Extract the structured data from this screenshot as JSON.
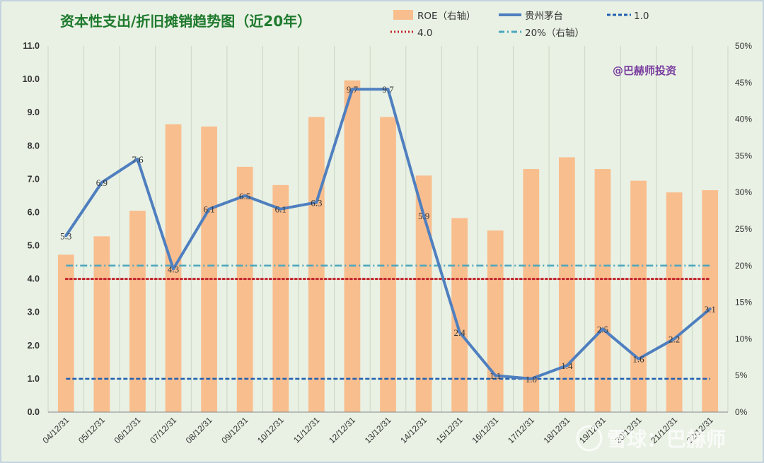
{
  "chart_data": {
    "type": "bar",
    "title": "资本性支出/折旧摊销趋势图（近20年）",
    "categories": [
      "04/12/31",
      "05/12/31",
      "06/12/31",
      "07/12/31",
      "08/12/31",
      "09/12/31",
      "10/12/31",
      "11/12/31",
      "12/12/31",
      "13/12/31",
      "14/12/31",
      "15/12/31",
      "16/12/31",
      "17/12/31",
      "18/12/31",
      "19/12/31",
      "20/12/31",
      "21/12/31",
      "22/12/31"
    ],
    "series": [
      {
        "name": "ROE（右轴）",
        "type": "bar",
        "axis": "right",
        "color": "#f9be8e",
        "values": [
          21.5,
          24.0,
          27.5,
          39.3,
          39.0,
          33.5,
          31.0,
          40.3,
          45.3,
          40.3,
          32.3,
          26.5,
          24.8,
          33.2,
          34.8,
          33.2,
          31.6,
          30.0,
          30.3
        ]
      },
      {
        "name": "贵州茅台",
        "type": "line",
        "axis": "left",
        "color": "#4f7fbf",
        "values": [
          5.3,
          6.9,
          7.6,
          4.3,
          6.1,
          6.5,
          6.1,
          6.3,
          9.7,
          9.7,
          5.9,
          2.4,
          1.1,
          1.0,
          1.4,
          2.5,
          1.6,
          2.2,
          3.1
        ]
      },
      {
        "name": "1.0",
        "type": "reference",
        "axis": "left",
        "value": 1.0,
        "color": "#1f5fb0"
      },
      {
        "name": "4.0",
        "type": "reference",
        "axis": "left",
        "value": 4.0,
        "color": "#c0232a"
      },
      {
        "name": "20%（右轴）",
        "type": "reference",
        "axis": "right",
        "value": 20,
        "color": "#4aa6bd"
      }
    ],
    "data_labels": [
      "5.3",
      "6.9",
      "7.6",
      "4.3",
      "6.1",
      "6.5",
      "6.1",
      "6.3",
      "9.7",
      "9.7",
      "5.9",
      "2.4",
      "1.1",
      "1.0",
      "1.4",
      "2.5",
      "1.6",
      "2.2",
      "3.1"
    ],
    "ylim_left": [
      0,
      11
    ],
    "ylim_right": [
      0,
      50
    ],
    "yticks_left": [
      "0.0",
      "1.0",
      "2.0",
      "3.0",
      "4.0",
      "5.0",
      "6.0",
      "7.0",
      "8.0",
      "9.0",
      "10.0",
      "11.0"
    ],
    "yticks_right": [
      "0%",
      "5%",
      "10%",
      "15%",
      "20%",
      "25%",
      "30%",
      "35%",
      "40%",
      "45%",
      "50%"
    ],
    "grid": "vertical",
    "legend_position": "top-right",
    "annotation": "@巴赫师投资",
    "watermark": "雪球：巴赫师"
  }
}
